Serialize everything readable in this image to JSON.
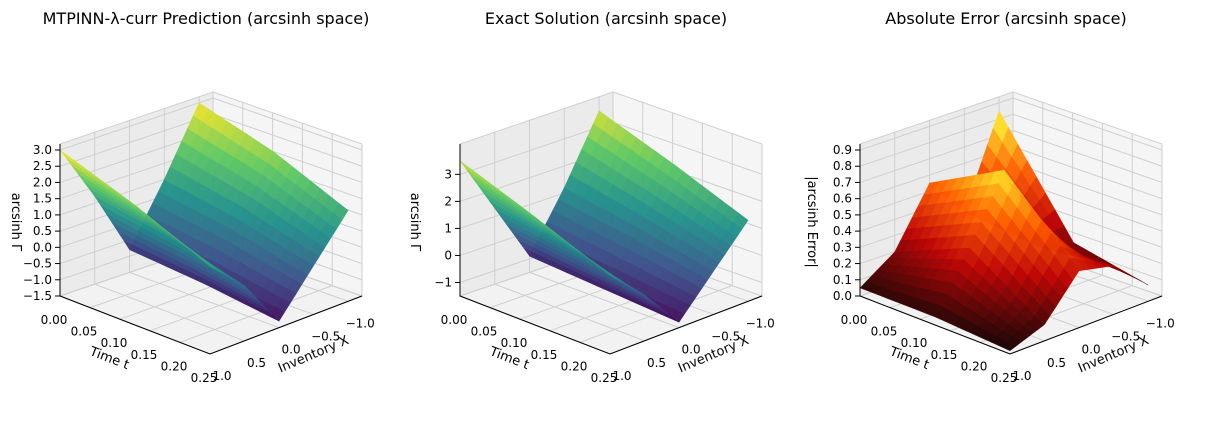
{
  "chart_data": [
    {
      "type": "surface3d",
      "title": "MTPINN-λ-curr Prediction (arcsinh space)",
      "xlabel": "Inventory X",
      "ylabel": "Time t",
      "zlabel": "arcsinh Γ",
      "xlim": [
        -1.2,
        1.0
      ],
      "ylim": [
        0.0,
        0.25
      ],
      "zlim": [
        -1.5,
        3.0
      ],
      "x_ticks": [
        "1.0",
        "0.5",
        "0.0",
        "−0.5",
        "−1.0"
      ],
      "y_ticks": [
        "0.00",
        "0.05",
        "0.10",
        "0.15",
        "0.20",
        "0.25"
      ],
      "z_ticks": [
        "−1.5",
        "−1.0",
        "−0.5",
        "0.0",
        "0.5",
        "1.0",
        "1.5",
        "2.0",
        "2.5",
        "3.0"
      ],
      "colormap": "viridis",
      "grid": true,
      "sample_surface": {
        "x": [
          -1.0,
          -0.5,
          0.0,
          0.5,
          1.0
        ],
        "t": [
          0.0,
          0.125,
          0.25
        ],
        "z": [
          [
            3.0,
            1.0,
            -0.8,
            1.2,
            3.0
          ],
          [
            2.3,
            0.6,
            -1.0,
            0.8,
            2.2
          ],
          [
            1.3,
            0.0,
            -1.3,
            0.2,
            1.2
          ]
        ]
      }
    },
    {
      "type": "surface3d",
      "title": "Exact Solution (arcsinh space)",
      "xlabel": "Inventory X",
      "ylabel": "Time t",
      "zlabel": "arcsinh Γ",
      "xlim": [
        -1.2,
        1.0
      ],
      "ylim": [
        0.0,
        0.25
      ],
      "zlim": [
        -1.5,
        3.9
      ],
      "x_ticks": [
        "1.0",
        "0.5",
        "0.0",
        "−0.5",
        "−1.0"
      ],
      "y_ticks": [
        "0.00",
        "0.05",
        "0.10",
        "0.15",
        "0.20",
        "0.25"
      ],
      "z_ticks": [
        "−1",
        "0",
        "1",
        "2",
        "3"
      ],
      "colormap": "viridis",
      "grid": true,
      "sample_surface": {
        "x": [
          -1.0,
          -0.5,
          0.0,
          0.5,
          1.0
        ],
        "t": [
          0.0,
          0.125,
          0.25
        ],
        "z": [
          [
            3.6,
            1.2,
            -0.9,
            1.3,
            3.5
          ],
          [
            2.6,
            0.7,
            -1.1,
            0.8,
            2.5
          ],
          [
            1.5,
            0.1,
            -1.3,
            0.2,
            1.4
          ]
        ]
      }
    },
    {
      "type": "surface3d",
      "title": "Absolute Error (arcsinh space)",
      "xlabel": "Inventory X",
      "ylabel": "Time t",
      "zlabel": "|arcsinh Error|",
      "xlim": [
        -1.2,
        1.0
      ],
      "ylim": [
        0.0,
        0.25
      ],
      "zlim": [
        0.0,
        0.9
      ],
      "x_ticks": [
        "1.0",
        "0.5",
        "0.0",
        "−0.5",
        "−1.0"
      ],
      "y_ticks": [
        "0.00",
        "0.05",
        "0.10",
        "0.15",
        "0.20",
        "0.25"
      ],
      "z_ticks": [
        "0.0",
        "0.1",
        "0.2",
        "0.3",
        "0.4",
        "0.5",
        "0.6",
        "0.7",
        "0.8",
        "0.9"
      ],
      "colormap": "hot",
      "grid": true,
      "sample_surface": {
        "x": [
          -1.0,
          -0.5,
          0.0,
          0.5,
          1.0
        ],
        "t": [
          0.0,
          0.125,
          0.25
        ],
        "z": [
          [
            0.85,
            0.3,
            0.55,
            0.2,
            0.05
          ],
          [
            0.2,
            0.25,
            0.8,
            0.4,
            0.05
          ],
          [
            0.1,
            0.3,
            0.35,
            0.1,
            0.02
          ]
        ]
      }
    }
  ]
}
